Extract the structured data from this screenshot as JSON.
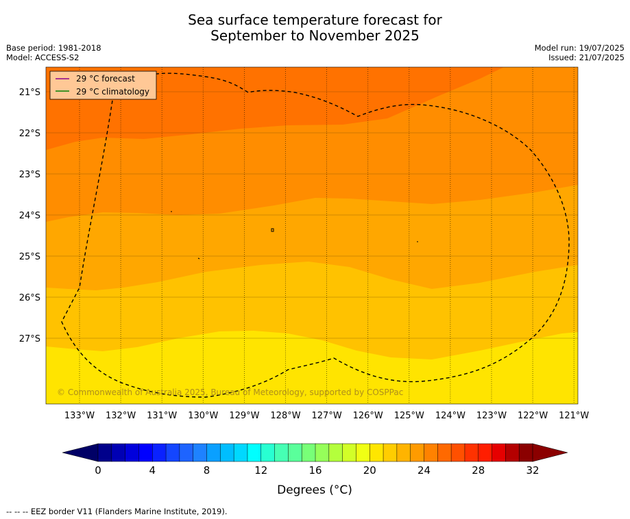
{
  "title_line1": "Sea surface temperature forecast for",
  "title_line2": "September to November 2025",
  "base_period": "Base period: 1981-2018",
  "model": "Model: ACCESS-S2",
  "model_run": "Model run: 19/07/2025",
  "issued": "Issued: 21/07/2025",
  "legend": {
    "forecast_label": "29 °C  forecast",
    "forecast_color": "#8b008b",
    "climatology_label": "29 °C  climatology",
    "climatology_color": "#008000"
  },
  "copyright": "© Commonwealth of Australia 2025, Bureau of Meteorology, supported by COSPPac",
  "lat_labels": [
    "21°S",
    "22°S",
    "23°S",
    "24°S",
    "25°S",
    "26°S",
    "27°S"
  ],
  "lon_labels": [
    "133°W",
    "132°W",
    "131°W",
    "130°W",
    "129°W",
    "128°W",
    "127°W",
    "126°W",
    "125°W",
    "124°W",
    "123°W",
    "122°W",
    "121°W"
  ],
  "colorbar": {
    "ticks": [
      "0",
      "4",
      "8",
      "12",
      "16",
      "20",
      "24",
      "28",
      "32"
    ],
    "label": "Degrees (°C)",
    "colors": [
      "#00008b",
      "#0000b4",
      "#0000dc",
      "#0000ff",
      "#0a22ff",
      "#1446ff",
      "#1e64ff",
      "#1e82ff",
      "#0aa0ff",
      "#00beff",
      "#00d8ff",
      "#00ffff",
      "#28ffd2",
      "#46ffb4",
      "#5aff9b",
      "#78ff78",
      "#96ff5a",
      "#b4ff3c",
      "#d2ff28",
      "#f0ff14",
      "#ffe600",
      "#ffcd00",
      "#ffb400",
      "#ff9b00",
      "#ff8200",
      "#ff6900",
      "#ff5000",
      "#ff3200",
      "#ff1e00",
      "#e60000",
      "#b40000",
      "#8b0000"
    ]
  },
  "footer": "--  --  -- EEZ border V11 (Flanders Marine Institute, 2019).",
  "map_colors": {
    "c27": "#ff7200",
    "c26": "#ff8d00",
    "c25": "#ffa700",
    "c24": "#ffc200",
    "c23": "#ffe400"
  }
}
